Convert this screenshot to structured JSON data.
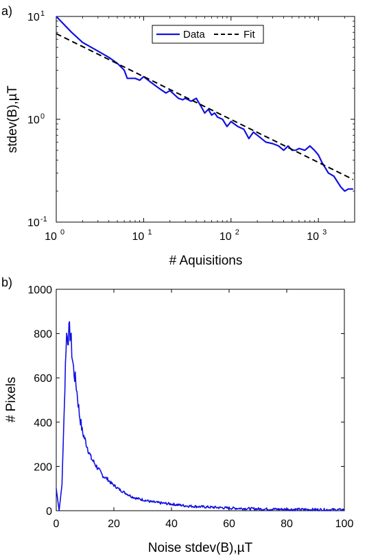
{
  "chart_data": [
    {
      "type": "line",
      "panel_label": "a)",
      "xlabel": "# Aquisitions",
      "ylabel": "stdev(B),µT",
      "xscale": "log",
      "yscale": "log",
      "xlim": [
        1,
        2600
      ],
      "ylim": [
        0.1,
        10
      ],
      "xtick_bases": [
        "10",
        "10",
        "10",
        "10"
      ],
      "xtick_exps": [
        "0",
        "1",
        "2",
        "3"
      ],
      "xtick_values": [
        1,
        10,
        100,
        1000
      ],
      "ytick_bases": [
        "10",
        "10",
        "10"
      ],
      "ytick_exps": [
        "-1",
        "0",
        "1"
      ],
      "ytick_values": [
        0.1,
        1,
        10
      ],
      "legend": {
        "placement": "top-center"
      },
      "series": [
        {
          "name": "Data",
          "color": "#1010e0",
          "style": "solid",
          "x": [
            1,
            1.5,
            2,
            3,
            4,
            5,
            6,
            6.5,
            7,
            8,
            9,
            10,
            12,
            15,
            18,
            20,
            25,
            28,
            30,
            35,
            40,
            45,
            50,
            55,
            60,
            65,
            70,
            80,
            90,
            100,
            120,
            140,
            160,
            180,
            200,
            250,
            300,
            350,
            400,
            450,
            500,
            550,
            600,
            700,
            800,
            900,
            1000,
            1100,
            1300,
            1500,
            1800,
            2000,
            2200,
            2500
          ],
          "y": [
            10,
            7.0,
            5.6,
            4.6,
            4.0,
            3.5,
            3.0,
            2.5,
            2.5,
            2.5,
            2.4,
            2.6,
            2.3,
            2.0,
            1.8,
            1.9,
            1.6,
            1.55,
            1.6,
            1.5,
            1.6,
            1.35,
            1.15,
            1.25,
            1.1,
            1.15,
            1.05,
            1.0,
            0.85,
            0.95,
            0.85,
            0.8,
            0.65,
            0.75,
            0.7,
            0.6,
            0.58,
            0.55,
            0.5,
            0.55,
            0.5,
            0.5,
            0.52,
            0.5,
            0.55,
            0.5,
            0.45,
            0.38,
            0.3,
            0.28,
            0.22,
            0.2,
            0.21,
            0.21
          ]
        },
        {
          "name": "Fit",
          "color": "#000000",
          "style": "dashed",
          "x": [
            1,
            2500
          ],
          "y": [
            6.8,
            0.26
          ]
        }
      ]
    },
    {
      "type": "line",
      "panel_label": "b)",
      "xlabel": "Noise stdev(B),µT",
      "ylabel": "# Pixels",
      "xlim": [
        0,
        100
      ],
      "ylim": [
        0,
        1000
      ],
      "xticks": [
        0,
        20,
        40,
        60,
        80,
        100
      ],
      "yticks": [
        0,
        200,
        400,
        600,
        800,
        1000
      ],
      "series": [
        {
          "color": "#1010e0",
          "x": [
            0,
            1,
            2,
            3,
            3.5,
            4,
            4.5,
            5,
            5.5,
            6,
            7,
            8,
            9,
            10,
            11,
            12,
            13,
            14,
            15,
            16,
            17,
            18,
            19,
            20,
            22,
            24,
            26,
            28,
            30,
            33,
            36,
            40,
            45,
            50,
            55,
            60,
            70,
            80,
            90,
            100
          ],
          "y": [
            100,
            0,
            120,
            560,
            800,
            780,
            810,
            800,
            700,
            640,
            560,
            440,
            360,
            320,
            280,
            240,
            220,
            200,
            180,
            160,
            150,
            140,
            125,
            115,
            95,
            80,
            65,
            55,
            50,
            40,
            35,
            30,
            22,
            18,
            15,
            12,
            8,
            6,
            5,
            4
          ]
        }
      ]
    }
  ]
}
